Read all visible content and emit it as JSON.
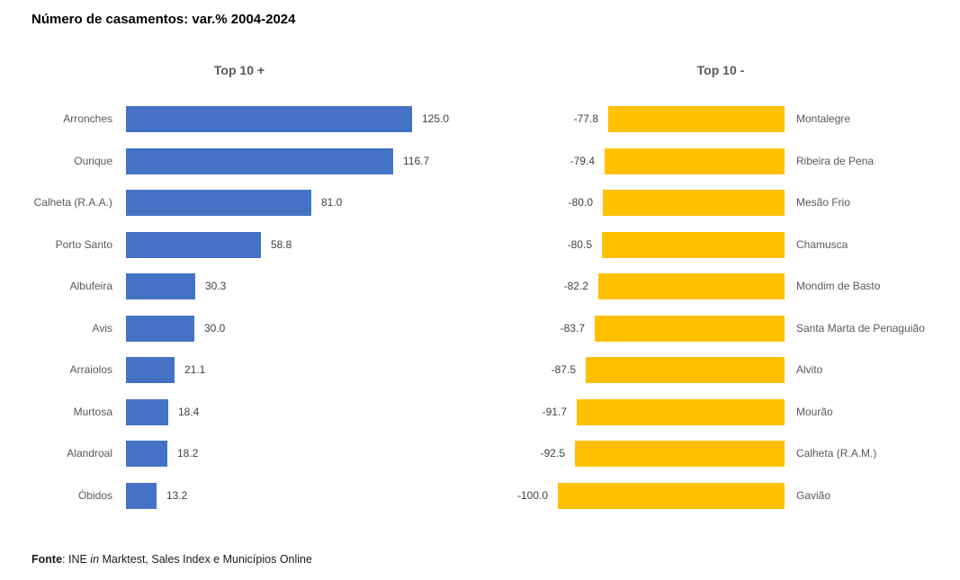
{
  "chart_data": {
    "type": "bar",
    "orientation": "horizontal",
    "title": "Número de casamentos: var.% 2004-2024",
    "grid": false,
    "legend": "none",
    "value_format": "one-decimal",
    "panels": [
      {
        "title": "Top 10 +",
        "bar_color": "#4472C4",
        "direction": "left-to-right",
        "value_range": [
          0,
          125
        ],
        "categories": [
          "Arronches",
          "Ourique",
          "Calheta (R.A.A.)",
          "Porto Santo",
          "Albufeira",
          "Avis",
          "Arraiolos",
          "Murtosa",
          "Alandroal",
          "Óbidos"
        ],
        "values": [
          125.0,
          116.7,
          81.0,
          58.8,
          30.3,
          30.0,
          21.1,
          18.4,
          18.2,
          13.2
        ]
      },
      {
        "title": "Top 10 -",
        "bar_color": "#FFC000",
        "direction": "right-to-left",
        "value_range": [
          -100,
          0
        ],
        "categories": [
          "Montalegre",
          "Ribeira de Pena",
          "Mesão Frio",
          "Chamusca",
          "Mondim de Basto",
          "Santa Marta de Penaguião",
          "Alvito",
          "Mourão",
          "Calheta (R.A.M.)",
          "Gavião"
        ],
        "values": [
          -77.8,
          -79.4,
          -80.0,
          -80.5,
          -82.2,
          -83.7,
          -87.5,
          -91.7,
          -92.5,
          -100.0
        ]
      }
    ]
  },
  "footer": {
    "label": "Fonte",
    "sep": ": INE ",
    "in_word": "in",
    "rest": " Marktest, Sales Index e Municípios Online"
  }
}
